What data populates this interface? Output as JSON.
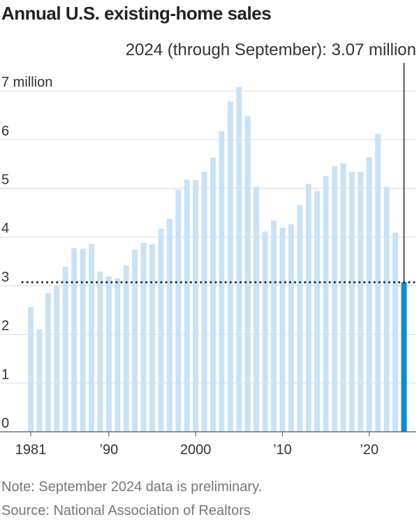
{
  "title": "Annual U.S. existing-home sales",
  "subtitle": "2024 (through September): 3.07 million",
  "note": "Note: September 2024 data is preliminary.",
  "source": "Source: National Association of Realtors",
  "chart_data": {
    "type": "bar",
    "title": "Annual U.S. existing-home sales",
    "xlabel": "",
    "ylabel": "",
    "ylim": [
      0,
      7
    ],
    "grid": true,
    "y_ticks": [
      {
        "value": 0,
        "label": "0"
      },
      {
        "value": 1,
        "label": "1"
      },
      {
        "value": 2,
        "label": "2"
      },
      {
        "value": 3,
        "label": "3"
      },
      {
        "value": 4,
        "label": "4"
      },
      {
        "value": 5,
        "label": "5"
      },
      {
        "value": 6,
        "label": "6"
      },
      {
        "value": 7,
        "label": "7 million"
      }
    ],
    "x_ticks": [
      {
        "year": 1981,
        "label": "1981"
      },
      {
        "year": 1990,
        "label": "’90"
      },
      {
        "year": 2000,
        "label": "2000"
      },
      {
        "year": 2010,
        "label": "’10"
      },
      {
        "year": 2020,
        "label": "’20"
      }
    ],
    "categories": [
      1981,
      1982,
      1983,
      1984,
      1985,
      1986,
      1987,
      1988,
      1989,
      1990,
      1991,
      1992,
      1993,
      1994,
      1995,
      1996,
      1997,
      1998,
      1999,
      2000,
      2001,
      2002,
      2003,
      2004,
      2005,
      2006,
      2007,
      2008,
      2009,
      2010,
      2011,
      2012,
      2013,
      2014,
      2015,
      2016,
      2017,
      2018,
      2019,
      2020,
      2021,
      2022,
      2023,
      2024
    ],
    "values": [
      2.56,
      2.11,
      2.85,
      3.0,
      3.39,
      3.77,
      3.76,
      3.86,
      3.29,
      3.19,
      3.15,
      3.42,
      3.74,
      3.88,
      3.85,
      4.17,
      4.37,
      4.97,
      5.18,
      5.17,
      5.34,
      5.63,
      6.17,
      6.78,
      7.08,
      6.48,
      5.03,
      4.11,
      4.34,
      4.19,
      4.26,
      4.66,
      5.09,
      4.94,
      5.25,
      5.45,
      5.51,
      5.34,
      5.34,
      5.64,
      6.12,
      5.03,
      4.09,
      3.07
    ],
    "highlight": {
      "year": 2024,
      "value": 3.07,
      "color": "#0a8ed8"
    },
    "bar_color": "#c9e2f5",
    "reference_line": {
      "value": 3.07,
      "style": "dotted",
      "color": "#222222"
    },
    "marker_line": {
      "year": 2024,
      "color": "#222222"
    }
  }
}
